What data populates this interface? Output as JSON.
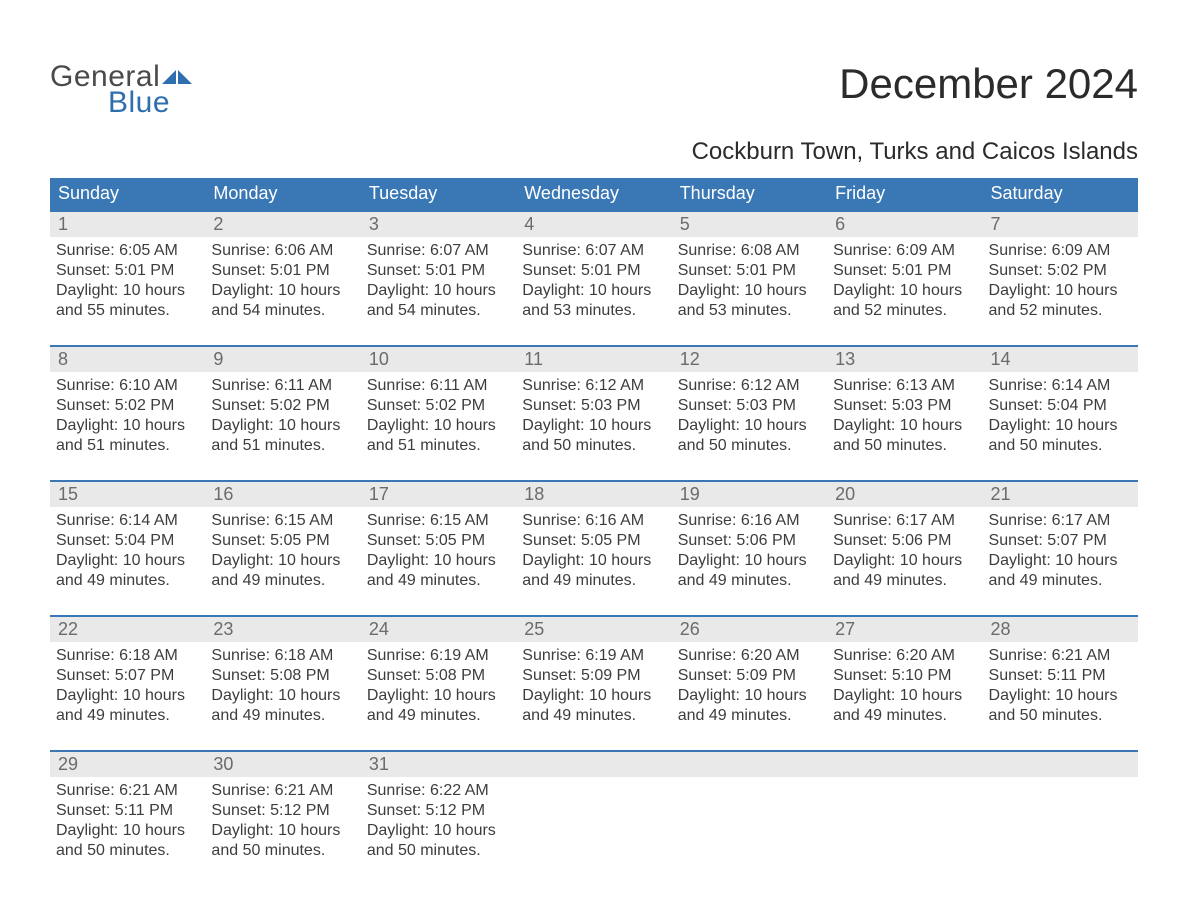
{
  "brand": {
    "word1": "General",
    "word2": "Blue",
    "flag_color": "#2f6fb0"
  },
  "title": "December 2024",
  "location": "Cockburn Town, Turks and Caicos Islands",
  "colors": {
    "header_bg": "#3a78b5",
    "header_text": "#ffffff",
    "daynum_bg": "#e9e9e9",
    "daynum_text": "#6b6b6b",
    "body_text": "#3d3d3d",
    "week_border": "#3a78b5",
    "page_bg": "#ffffff",
    "logo_gray": "#4a4a4a",
    "logo_blue": "#2f6fb0"
  },
  "typography": {
    "title_fontsize": 42,
    "location_fontsize": 24,
    "dow_fontsize": 18,
    "daynum_fontsize": 18,
    "body_fontsize": 16,
    "logo_fontsize": 30
  },
  "days_of_week": [
    "Sunday",
    "Monday",
    "Tuesday",
    "Wednesday",
    "Thursday",
    "Friday",
    "Saturday"
  ],
  "weeks": [
    [
      {
        "n": "1",
        "sunrise": "6:05 AM",
        "sunset": "5:01 PM",
        "dl_h": "10",
        "dl_m": "55"
      },
      {
        "n": "2",
        "sunrise": "6:06 AM",
        "sunset": "5:01 PM",
        "dl_h": "10",
        "dl_m": "54"
      },
      {
        "n": "3",
        "sunrise": "6:07 AM",
        "sunset": "5:01 PM",
        "dl_h": "10",
        "dl_m": "54"
      },
      {
        "n": "4",
        "sunrise": "6:07 AM",
        "sunset": "5:01 PM",
        "dl_h": "10",
        "dl_m": "53"
      },
      {
        "n": "5",
        "sunrise": "6:08 AM",
        "sunset": "5:01 PM",
        "dl_h": "10",
        "dl_m": "53"
      },
      {
        "n": "6",
        "sunrise": "6:09 AM",
        "sunset": "5:01 PM",
        "dl_h": "10",
        "dl_m": "52"
      },
      {
        "n": "7",
        "sunrise": "6:09 AM",
        "sunset": "5:02 PM",
        "dl_h": "10",
        "dl_m": "52"
      }
    ],
    [
      {
        "n": "8",
        "sunrise": "6:10 AM",
        "sunset": "5:02 PM",
        "dl_h": "10",
        "dl_m": "51"
      },
      {
        "n": "9",
        "sunrise": "6:11 AM",
        "sunset": "5:02 PM",
        "dl_h": "10",
        "dl_m": "51"
      },
      {
        "n": "10",
        "sunrise": "6:11 AM",
        "sunset": "5:02 PM",
        "dl_h": "10",
        "dl_m": "51"
      },
      {
        "n": "11",
        "sunrise": "6:12 AM",
        "sunset": "5:03 PM",
        "dl_h": "10",
        "dl_m": "50"
      },
      {
        "n": "12",
        "sunrise": "6:12 AM",
        "sunset": "5:03 PM",
        "dl_h": "10",
        "dl_m": "50"
      },
      {
        "n": "13",
        "sunrise": "6:13 AM",
        "sunset": "5:03 PM",
        "dl_h": "10",
        "dl_m": "50"
      },
      {
        "n": "14",
        "sunrise": "6:14 AM",
        "sunset": "5:04 PM",
        "dl_h": "10",
        "dl_m": "50"
      }
    ],
    [
      {
        "n": "15",
        "sunrise": "6:14 AM",
        "sunset": "5:04 PM",
        "dl_h": "10",
        "dl_m": "49"
      },
      {
        "n": "16",
        "sunrise": "6:15 AM",
        "sunset": "5:05 PM",
        "dl_h": "10",
        "dl_m": "49"
      },
      {
        "n": "17",
        "sunrise": "6:15 AM",
        "sunset": "5:05 PM",
        "dl_h": "10",
        "dl_m": "49"
      },
      {
        "n": "18",
        "sunrise": "6:16 AM",
        "sunset": "5:05 PM",
        "dl_h": "10",
        "dl_m": "49"
      },
      {
        "n": "19",
        "sunrise": "6:16 AM",
        "sunset": "5:06 PM",
        "dl_h": "10",
        "dl_m": "49"
      },
      {
        "n": "20",
        "sunrise": "6:17 AM",
        "sunset": "5:06 PM",
        "dl_h": "10",
        "dl_m": "49"
      },
      {
        "n": "21",
        "sunrise": "6:17 AM",
        "sunset": "5:07 PM",
        "dl_h": "10",
        "dl_m": "49"
      }
    ],
    [
      {
        "n": "22",
        "sunrise": "6:18 AM",
        "sunset": "5:07 PM",
        "dl_h": "10",
        "dl_m": "49"
      },
      {
        "n": "23",
        "sunrise": "6:18 AM",
        "sunset": "5:08 PM",
        "dl_h": "10",
        "dl_m": "49"
      },
      {
        "n": "24",
        "sunrise": "6:19 AM",
        "sunset": "5:08 PM",
        "dl_h": "10",
        "dl_m": "49"
      },
      {
        "n": "25",
        "sunrise": "6:19 AM",
        "sunset": "5:09 PM",
        "dl_h": "10",
        "dl_m": "49"
      },
      {
        "n": "26",
        "sunrise": "6:20 AM",
        "sunset": "5:09 PM",
        "dl_h": "10",
        "dl_m": "49"
      },
      {
        "n": "27",
        "sunrise": "6:20 AM",
        "sunset": "5:10 PM",
        "dl_h": "10",
        "dl_m": "49"
      },
      {
        "n": "28",
        "sunrise": "6:21 AM",
        "sunset": "5:11 PM",
        "dl_h": "10",
        "dl_m": "50"
      }
    ],
    [
      {
        "n": "29",
        "sunrise": "6:21 AM",
        "sunset": "5:11 PM",
        "dl_h": "10",
        "dl_m": "50"
      },
      {
        "n": "30",
        "sunrise": "6:21 AM",
        "sunset": "5:12 PM",
        "dl_h": "10",
        "dl_m": "50"
      },
      {
        "n": "31",
        "sunrise": "6:22 AM",
        "sunset": "5:12 PM",
        "dl_h": "10",
        "dl_m": "50"
      },
      null,
      null,
      null,
      null
    ]
  ],
  "labels": {
    "sunrise": "Sunrise: ",
    "sunset": "Sunset: ",
    "daylight_a": "Daylight: ",
    "daylight_b": " hours and ",
    "daylight_c": " minutes."
  }
}
